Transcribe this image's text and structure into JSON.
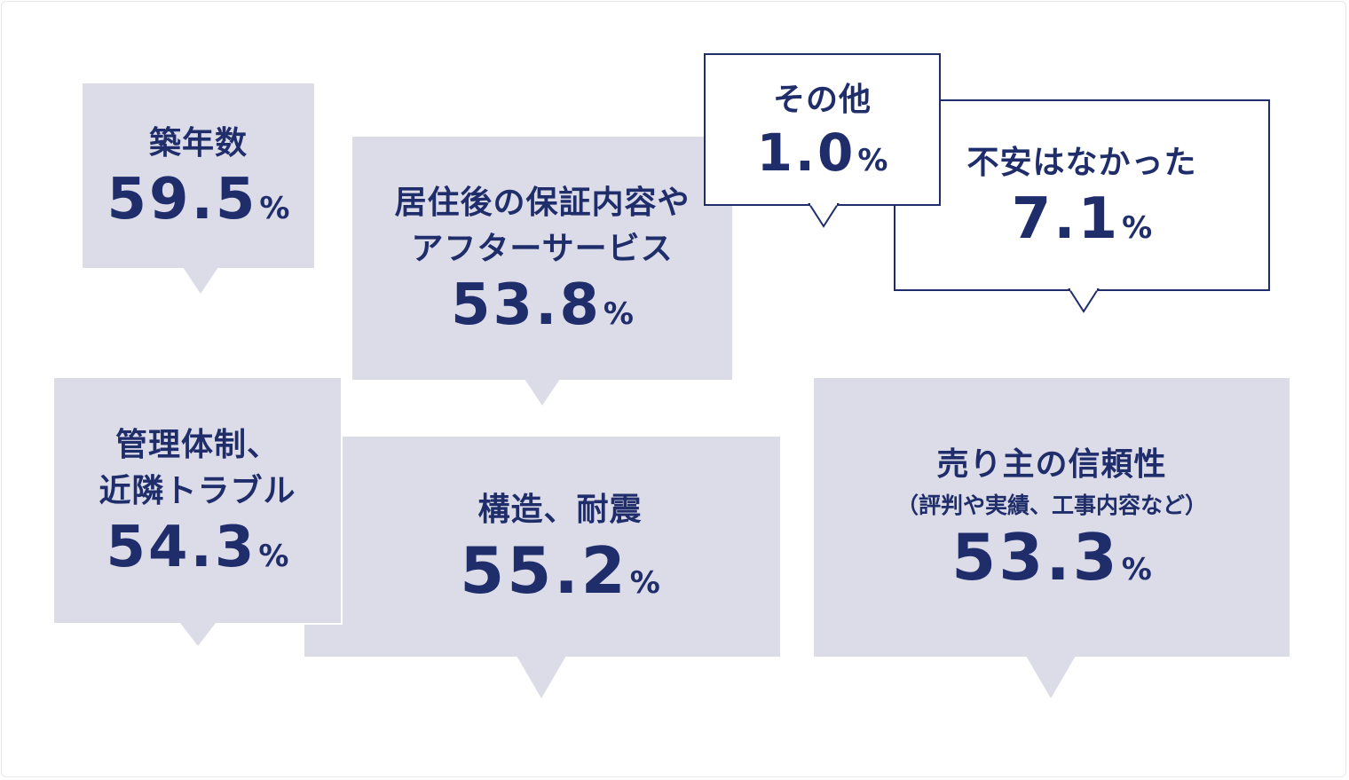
{
  "items": [
    {
      "id": "chikunensu",
      "lines": [
        "築年数"
      ],
      "value": "59.5",
      "unit": "%",
      "style": "filled"
    },
    {
      "id": "hosho",
      "lines": [
        "居住後の保証内容や",
        "アフターサービス"
      ],
      "value": "53.8",
      "unit": "%",
      "style": "filled"
    },
    {
      "id": "sonota",
      "lines": [
        "その他"
      ],
      "value": "1.0",
      "unit": "%",
      "style": "outline"
    },
    {
      "id": "fuan-nashi",
      "lines": [
        "不安はなかった"
      ],
      "value": "7.1",
      "unit": "%",
      "style": "outline"
    },
    {
      "id": "kanri",
      "lines": [
        "管理体制、",
        "近隣トラブル"
      ],
      "value": "54.3",
      "unit": "%",
      "style": "filled"
    },
    {
      "id": "kozo",
      "lines": [
        "構造、耐震"
      ],
      "value": "55.2",
      "unit": "%",
      "style": "filled"
    },
    {
      "id": "urinushi",
      "lines": [
        "売り主の信頼性"
      ],
      "sub": "（評判や実績、工事内容など）",
      "value": "53.3",
      "unit": "%",
      "style": "filled"
    }
  ],
  "colors": {
    "text": "#1f2d6b",
    "fill": "#dcdce9",
    "outline": "#1f2d6b"
  }
}
